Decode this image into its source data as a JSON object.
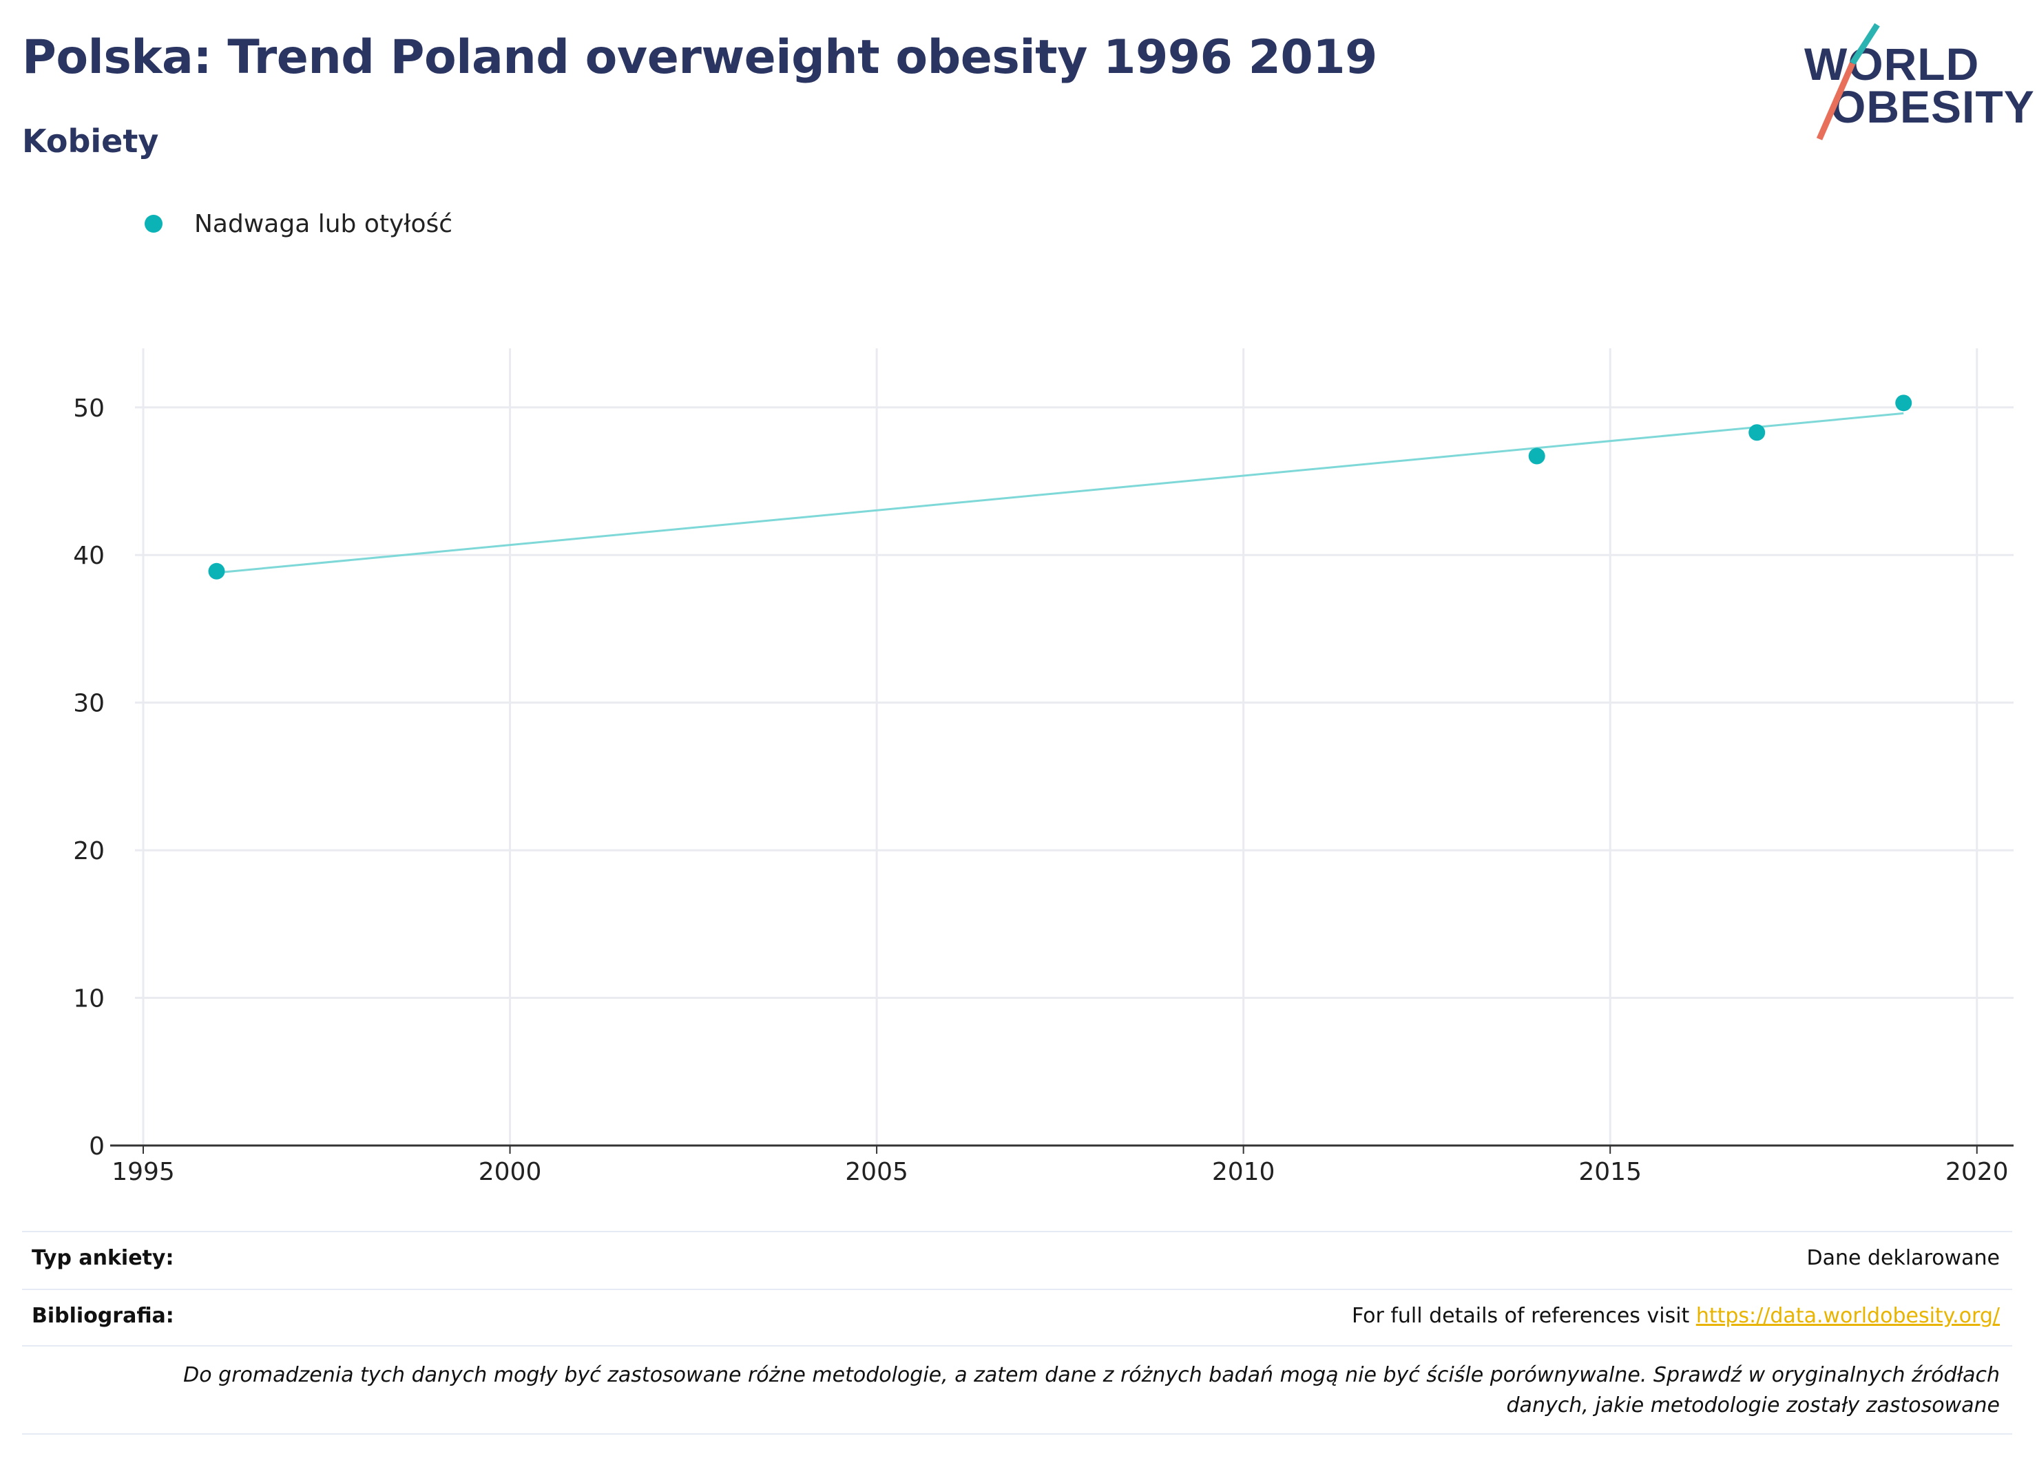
{
  "header": {
    "title": "Polska: Trend Poland overweight obesity 1996 2019",
    "subtitle": "Kobiety"
  },
  "logo": {
    "line1": "WORLD",
    "line2": "OBESITY",
    "colors": {
      "text": "#2a3561",
      "teal": "#2ab3b1",
      "coral": "#e8705a"
    }
  },
  "legend": {
    "label": "Nadwaga lub otyłość"
  },
  "colors": {
    "series": "#0bb3b7",
    "trend": "#7fd8d8",
    "grid": "#e9ebf0",
    "axis": "#333333",
    "title": "#2a3561",
    "link": "#e8b400"
  },
  "chart_data": {
    "type": "scatter",
    "title": "Polska: Trend Poland overweight obesity 1996 2019",
    "subtitle": "Kobiety",
    "xlabel": "",
    "ylabel": "",
    "xlim": [
      1995,
      2020.5
    ],
    "ylim": [
      0,
      54
    ],
    "xticks": [
      1995,
      2000,
      2005,
      2010,
      2015,
      2020
    ],
    "yticks": [
      0,
      10,
      20,
      30,
      40,
      50
    ],
    "grid": true,
    "legend_position": "top-left",
    "series": [
      {
        "name": "Nadwaga lub otyłość",
        "x": [
          1996,
          2014,
          2017,
          2019
        ],
        "y": [
          38.9,
          46.7,
          48.3,
          50.3
        ]
      }
    ],
    "trendline": {
      "x": [
        1996,
        2019
      ],
      "y": [
        38.8,
        49.6
      ]
    }
  },
  "footer": {
    "survey_type_label": "Typ ankiety:",
    "survey_type_value": "Dane deklarowane",
    "bibliography_label": "Bibliografia:",
    "bibliography_text": "For full details of references visit ",
    "bibliography_link": "https://data.worldobesity.org/",
    "disclaimer_line1": "Do gromadzenia tych danych mogły być zastosowane różne metodologie, a zatem dane z różnych badań mogą nie być ściśle porównywalne. Sprawdź w oryginalnych źródłach",
    "disclaimer_line2": "danych, jakie metodologie zostały zastosowane"
  }
}
